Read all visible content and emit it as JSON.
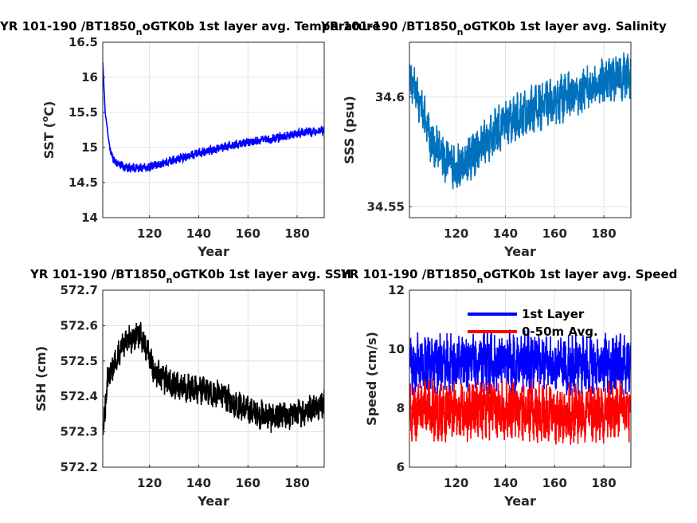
{
  "chart_data": [
    {
      "type": "line",
      "title_main": "YR 101-190 /BT1850",
      "title_sub": "n",
      "title_tail": "oGTK0b 1st layer avg. Temperature",
      "xlabel": "Year",
      "ylabel_main": "SST (",
      "ylabel_sup": "o",
      "ylabel_tail": "C)",
      "xlim": [
        101,
        191
      ],
      "ylim": [
        14,
        16.5
      ],
      "xticks": [
        120,
        140,
        160,
        180
      ],
      "yticks": [
        14,
        14.5,
        15,
        15.5,
        16,
        16.5
      ],
      "ytick_labels": [
        "14",
        "14.5",
        "15",
        "15.5",
        "16",
        "16.5"
      ],
      "grid": true,
      "series": [
        {
          "color": "#0000ff",
          "x": [
            101,
            102,
            104,
            106,
            110,
            115,
            120,
            125,
            130,
            140,
            150,
            160,
            170,
            180,
            190
          ],
          "y": [
            16.2,
            15.5,
            14.95,
            14.8,
            14.72,
            14.7,
            14.72,
            14.77,
            14.82,
            14.92,
            15.0,
            15.08,
            15.12,
            15.2,
            15.25
          ]
        }
      ]
    },
    {
      "type": "line",
      "title_main": "YR 101-190 /BT1850",
      "title_sub": "n",
      "title_tail": "oGTK0b 1st layer avg. Salinity",
      "xlabel": "Year",
      "ylabel_main": "SSS (psu)",
      "ylabel_sup": "",
      "ylabel_tail": "",
      "xlim": [
        101,
        191
      ],
      "ylim": [
        34.545,
        34.625
      ],
      "xticks": [
        120,
        140,
        160,
        180
      ],
      "yticks": [
        34.55,
        34.6
      ],
      "ytick_labels": [
        "34.55",
        "34.6"
      ],
      "grid": true,
      "series": [
        {
          "color": "#0072bd",
          "x": [
            101,
            105,
            110,
            115,
            120,
            125,
            130,
            140,
            150,
            160,
            170,
            180,
            190
          ],
          "y": [
            34.61,
            34.598,
            34.58,
            34.572,
            34.567,
            34.572,
            34.578,
            34.588,
            34.594,
            34.598,
            34.602,
            34.607,
            34.61
          ]
        }
      ]
    },
    {
      "type": "line",
      "title_main": "YR 101-190 /BT1850",
      "title_sub": "n",
      "title_tail": "oGTK0b 1st layer avg. SSH",
      "xlabel": "Year",
      "ylabel_main": "SSH (cm)",
      "ylabel_sup": "",
      "ylabel_tail": "",
      "xlim": [
        101,
        191
      ],
      "ylim": [
        572.2,
        572.7
      ],
      "xticks": [
        120,
        140,
        160,
        180
      ],
      "yticks": [
        572.2,
        572.3,
        572.4,
        572.5,
        572.6,
        572.7
      ],
      "ytick_labels": [
        "572.2",
        "572.3",
        "572.4",
        "572.5",
        "572.6",
        "572.7"
      ],
      "grid": true,
      "series": [
        {
          "color": "#000000",
          "x": [
            101,
            103,
            106,
            110,
            115,
            118,
            122,
            130,
            140,
            150,
            160,
            170,
            180,
            190
          ],
          "y": [
            572.3,
            572.45,
            572.5,
            572.55,
            572.58,
            572.55,
            572.47,
            572.43,
            572.42,
            572.4,
            572.36,
            572.34,
            572.35,
            572.38
          ]
        }
      ]
    },
    {
      "type": "line",
      "title_main": "YR 101-190 /BT1850",
      "title_sub": "n",
      "title_tail": "oGTK0b 1st layer avg. Speed",
      "xlabel": "Year",
      "ylabel_main": "Speed (cm/s)",
      "ylabel_sup": "",
      "ylabel_tail": "",
      "xlim": [
        101,
        191
      ],
      "ylim": [
        6,
        12
      ],
      "xticks": [
        120,
        140,
        160,
        180
      ],
      "yticks": [
        6,
        8,
        10,
        12
      ],
      "ytick_labels": [
        "6",
        "8",
        "10",
        "12"
      ],
      "grid": true,
      "legend": {
        "position": "top-center",
        "entries": [
          "1st Layer",
          "0-50m Avg."
        ]
      },
      "series": [
        {
          "name": "1st Layer",
          "color": "#0000ff",
          "x": [
            101,
            120,
            140,
            160,
            180,
            190
          ],
          "y": [
            9.5,
            9.5,
            9.6,
            9.5,
            9.5,
            9.5
          ]
        },
        {
          "name": "0-50m Avg.",
          "color": "#ff0000",
          "x": [
            101,
            120,
            140,
            160,
            180,
            190
          ],
          "y": [
            7.9,
            7.9,
            8.0,
            7.8,
            7.9,
            7.9
          ]
        }
      ]
    }
  ]
}
